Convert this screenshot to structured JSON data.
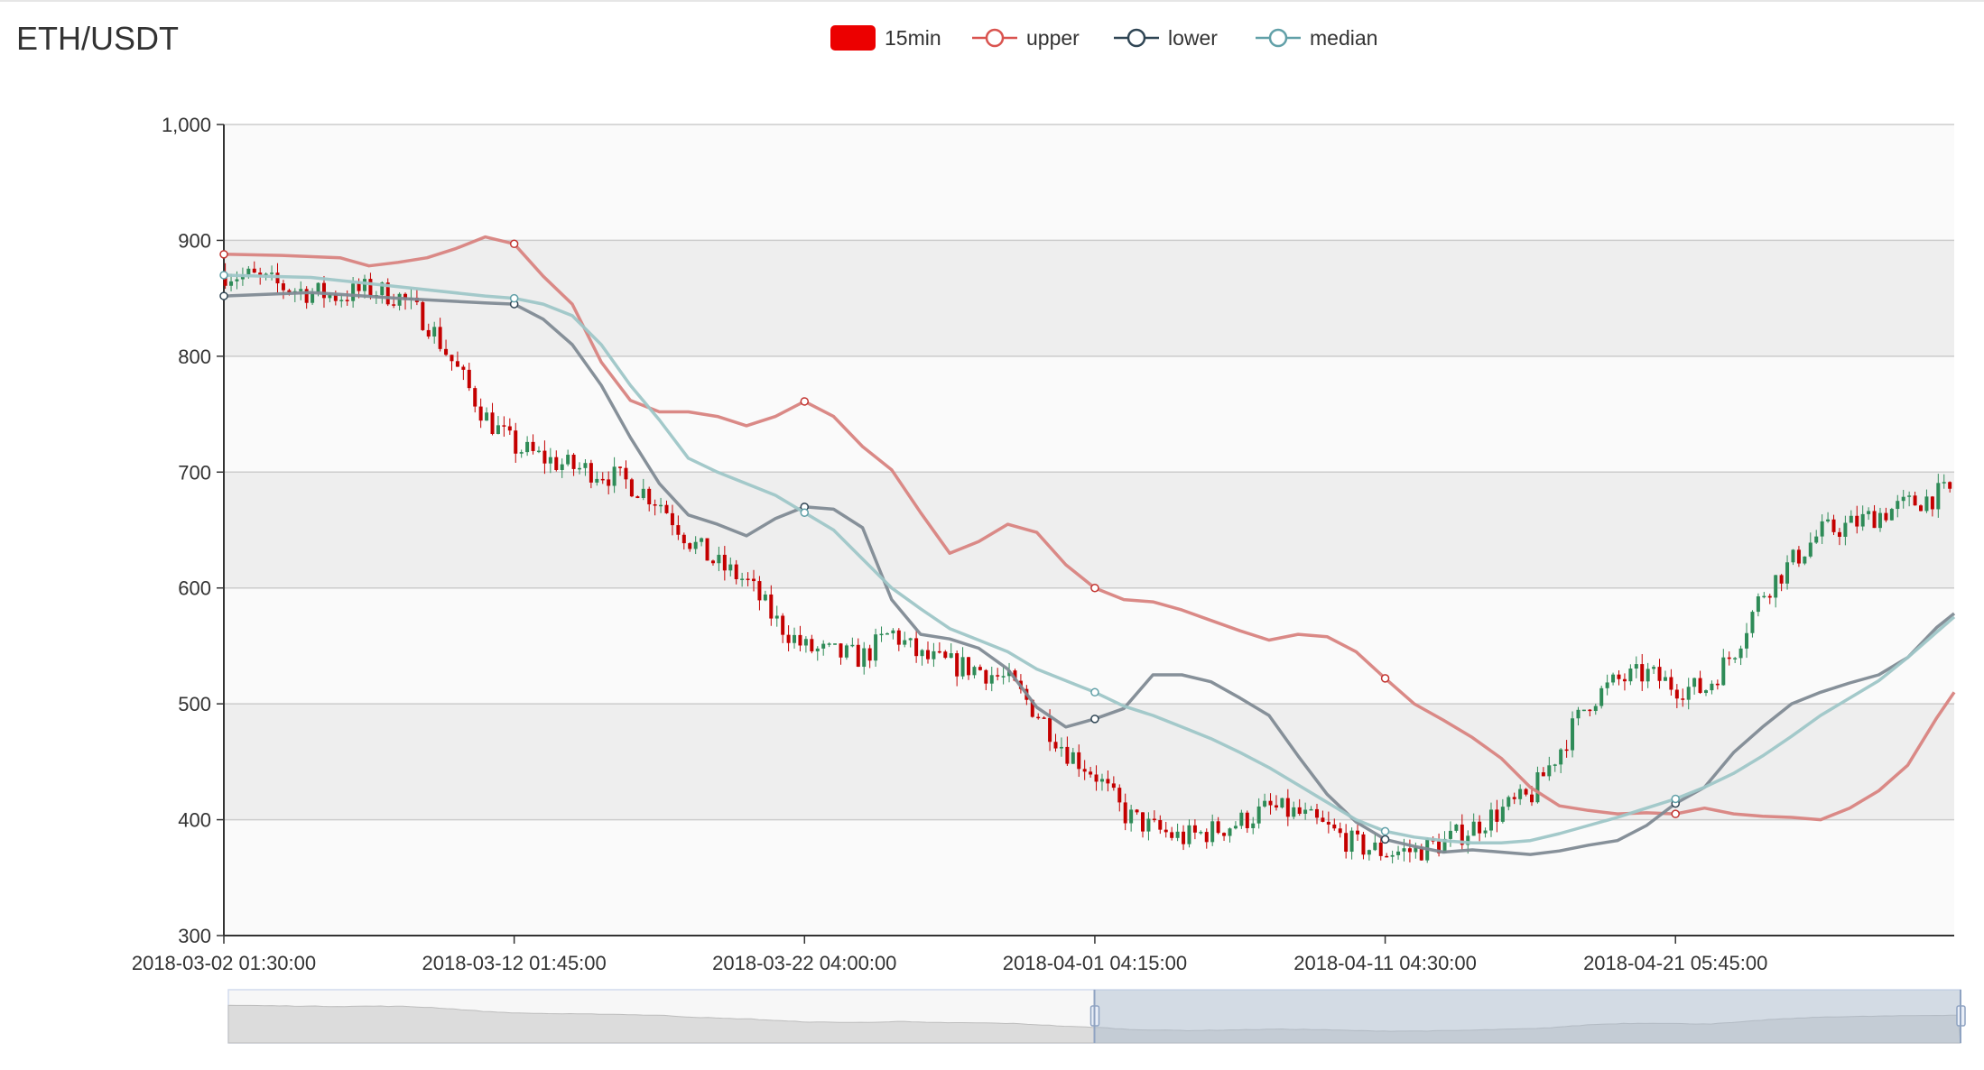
{
  "header": {
    "title": "ETH/USDT"
  },
  "legend": [
    {
      "name": "15min",
      "symbol": "rect",
      "color": "#ec0000"
    },
    {
      "name": "upper",
      "symbol": "circle",
      "color": "#d9534f"
    },
    {
      "name": "lower",
      "symbol": "circle",
      "color": "#2f4554"
    },
    {
      "name": "median",
      "symbol": "circle",
      "color": "#61a0a8"
    }
  ],
  "colors": {
    "up": "#2e8b57",
    "down": "#c40000",
    "upper": "#d88380",
    "lower": "#7f8a93",
    "median": "#9ec6c7"
  },
  "chart_data": {
    "type": "candlestick",
    "title": "ETH/USDT",
    "ylim": [
      300,
      1000
    ],
    "yticks": [
      300,
      400,
      500,
      600,
      700,
      800,
      900,
      1000
    ],
    "ytick_labels": [
      "300",
      "400",
      "500",
      "600",
      "700",
      "800",
      "900",
      "1,000"
    ],
    "xlim": [
      0,
      59.6
    ],
    "xticks": [
      0,
      10,
      20,
      30,
      40,
      50
    ],
    "xtick_labels": [
      "2018-03-02 01:30:00",
      "2018-03-12 01:45:00",
      "2018-03-22 04:00:00",
      "2018-04-01 04:15:00",
      "2018-04-11 04:30:00",
      "2018-04-21 05:45:00"
    ],
    "x_unit": "days since 2018-03-02 01:30:00",
    "grid": true,
    "legend_position": "top-center",
    "price_path": [
      [
        0,
        872
      ],
      [
        1,
        868
      ],
      [
        2,
        860
      ],
      [
        3,
        855
      ],
      [
        4,
        852
      ],
      [
        5,
        858
      ],
      [
        6,
        852
      ],
      [
        7,
        830
      ],
      [
        8,
        790
      ],
      [
        9,
        748
      ],
      [
        10,
        722
      ],
      [
        11,
        712
      ],
      [
        12,
        704
      ],
      [
        13,
        700
      ],
      [
        14,
        690
      ],
      [
        15,
        675
      ],
      [
        16,
        642
      ],
      [
        17,
        620
      ],
      [
        18,
        606
      ],
      [
        19,
        572
      ],
      [
        20,
        548
      ],
      [
        21,
        543
      ],
      [
        22,
        540
      ],
      [
        23,
        562
      ],
      [
        24,
        540
      ],
      [
        25,
        534
      ],
      [
        26,
        530
      ],
      [
        27,
        520
      ],
      [
        28,
        493
      ],
      [
        29,
        460
      ],
      [
        30,
        440
      ],
      [
        31,
        405
      ],
      [
        32,
        392
      ],
      [
        33,
        384
      ],
      [
        34,
        390
      ],
      [
        35,
        398
      ],
      [
        36,
        410
      ],
      [
        37,
        405
      ],
      [
        38,
        392
      ],
      [
        39,
        378
      ],
      [
        40,
        372
      ],
      [
        41,
        373
      ],
      [
        42,
        380
      ],
      [
        43,
        393
      ],
      [
        44,
        408
      ],
      [
        45,
        420
      ],
      [
        46,
        460
      ],
      [
        47,
        502
      ],
      [
        48,
        520
      ],
      [
        49,
        526
      ],
      [
        50,
        515
      ],
      [
        51,
        512
      ],
      [
        52,
        545
      ],
      [
        53,
        596
      ],
      [
        54,
        622
      ],
      [
        55,
        648
      ],
      [
        56,
        654
      ],
      [
        57,
        664
      ],
      [
        58,
        672
      ],
      [
        59,
        680
      ],
      [
        59.6,
        684
      ]
    ],
    "series": [
      {
        "name": "15min",
        "kind": "candlestick"
      },
      {
        "name": "upper",
        "kind": "line",
        "points": [
          [
            0,
            888
          ],
          [
            2,
            887
          ],
          [
            4,
            885
          ],
          [
            5,
            878
          ],
          [
            6,
            881
          ],
          [
            7,
            885
          ],
          [
            8,
            893
          ],
          [
            9,
            903
          ],
          [
            10,
            897
          ],
          [
            11,
            869
          ],
          [
            12,
            845
          ],
          [
            13,
            795
          ],
          [
            14,
            762
          ],
          [
            15,
            752
          ],
          [
            16,
            752
          ],
          [
            17,
            748
          ],
          [
            18,
            740
          ],
          [
            19,
            748
          ],
          [
            20,
            761
          ],
          [
            21,
            748
          ],
          [
            22,
            722
          ],
          [
            23,
            702
          ],
          [
            24,
            665
          ],
          [
            25,
            630
          ],
          [
            26,
            640
          ],
          [
            27,
            655
          ],
          [
            28,
            648
          ],
          [
            29,
            620
          ],
          [
            30,
            600
          ],
          [
            31,
            590
          ],
          [
            32,
            588
          ],
          [
            33,
            581
          ],
          [
            34,
            572
          ],
          [
            35,
            563
          ],
          [
            36,
            555
          ],
          [
            37,
            560
          ],
          [
            38,
            558
          ],
          [
            39,
            545
          ],
          [
            40,
            522
          ],
          [
            41,
            500
          ],
          [
            42,
            486
          ],
          [
            43,
            471
          ],
          [
            44,
            453
          ],
          [
            45,
            428
          ],
          [
            46,
            412
          ],
          [
            47,
            408
          ],
          [
            48,
            405
          ],
          [
            49,
            406
          ],
          [
            50,
            405
          ],
          [
            51,
            410
          ],
          [
            52,
            405
          ],
          [
            53,
            403
          ],
          [
            54,
            402
          ],
          [
            55,
            400
          ],
          [
            56,
            410
          ],
          [
            57,
            425
          ],
          [
            58,
            447
          ],
          [
            59,
            488
          ],
          [
            59.6,
            510
          ]
        ]
      },
      {
        "name": "lower",
        "kind": "line",
        "points": [
          [
            0,
            852
          ],
          [
            3,
            855
          ],
          [
            6,
            850
          ],
          [
            9,
            846
          ],
          [
            10,
            845
          ],
          [
            11,
            832
          ],
          [
            12,
            810
          ],
          [
            13,
            775
          ],
          [
            14,
            730
          ],
          [
            15,
            690
          ],
          [
            16,
            663
          ],
          [
            17,
            655
          ],
          [
            18,
            645
          ],
          [
            19,
            660
          ],
          [
            20,
            670
          ],
          [
            21,
            668
          ],
          [
            22,
            652
          ],
          [
            23,
            590
          ],
          [
            24,
            560
          ],
          [
            25,
            556
          ],
          [
            26,
            548
          ],
          [
            27,
            530
          ],
          [
            28,
            497
          ],
          [
            29,
            480
          ],
          [
            30,
            487
          ],
          [
            31,
            496
          ],
          [
            32,
            525
          ],
          [
            33,
            525
          ],
          [
            34,
            519
          ],
          [
            35,
            505
          ],
          [
            36,
            490
          ],
          [
            37,
            455
          ],
          [
            38,
            422
          ],
          [
            39,
            398
          ],
          [
            40,
            383
          ],
          [
            41,
            377
          ],
          [
            42,
            372
          ],
          [
            43,
            374
          ],
          [
            44,
            372
          ],
          [
            45,
            370
          ],
          [
            46,
            373
          ],
          [
            47,
            378
          ],
          [
            48,
            382
          ],
          [
            49,
            395
          ],
          [
            50,
            414
          ],
          [
            51,
            428
          ],
          [
            52,
            458
          ],
          [
            53,
            480
          ],
          [
            54,
            500
          ],
          [
            55,
            510
          ],
          [
            56,
            518
          ],
          [
            57,
            525
          ],
          [
            58,
            540
          ],
          [
            59,
            566
          ],
          [
            59.6,
            578
          ]
        ]
      },
      {
        "name": "median",
        "kind": "line",
        "points": [
          [
            0,
            870
          ],
          [
            3,
            868
          ],
          [
            6,
            860
          ],
          [
            9,
            852
          ],
          [
            10,
            850
          ],
          [
            11,
            845
          ],
          [
            12,
            835
          ],
          [
            13,
            810
          ],
          [
            14,
            775
          ],
          [
            15,
            745
          ],
          [
            16,
            712
          ],
          [
            17,
            700
          ],
          [
            18,
            690
          ],
          [
            19,
            680
          ],
          [
            20,
            665
          ],
          [
            21,
            650
          ],
          [
            22,
            625
          ],
          [
            23,
            600
          ],
          [
            24,
            582
          ],
          [
            25,
            565
          ],
          [
            26,
            555
          ],
          [
            27,
            545
          ],
          [
            28,
            530
          ],
          [
            29,
            520
          ],
          [
            30,
            510
          ],
          [
            31,
            498
          ],
          [
            32,
            490
          ],
          [
            33,
            480
          ],
          [
            34,
            470
          ],
          [
            35,
            458
          ],
          [
            36,
            445
          ],
          [
            37,
            430
          ],
          [
            38,
            415
          ],
          [
            39,
            400
          ],
          [
            40,
            390
          ],
          [
            41,
            385
          ],
          [
            42,
            382
          ],
          [
            43,
            380
          ],
          [
            44,
            380
          ],
          [
            45,
            382
          ],
          [
            46,
            388
          ],
          [
            47,
            395
          ],
          [
            48,
            402
          ],
          [
            49,
            410
          ],
          [
            50,
            418
          ],
          [
            51,
            428
          ],
          [
            52,
            440
          ],
          [
            53,
            455
          ],
          [
            54,
            472
          ],
          [
            55,
            490
          ],
          [
            56,
            505
          ],
          [
            57,
            520
          ],
          [
            58,
            540
          ],
          [
            59,
            562
          ],
          [
            59.6,
            575
          ]
        ]
      }
    ]
  },
  "data_zoom": {
    "start_percent": 50,
    "end_percent": 100
  }
}
